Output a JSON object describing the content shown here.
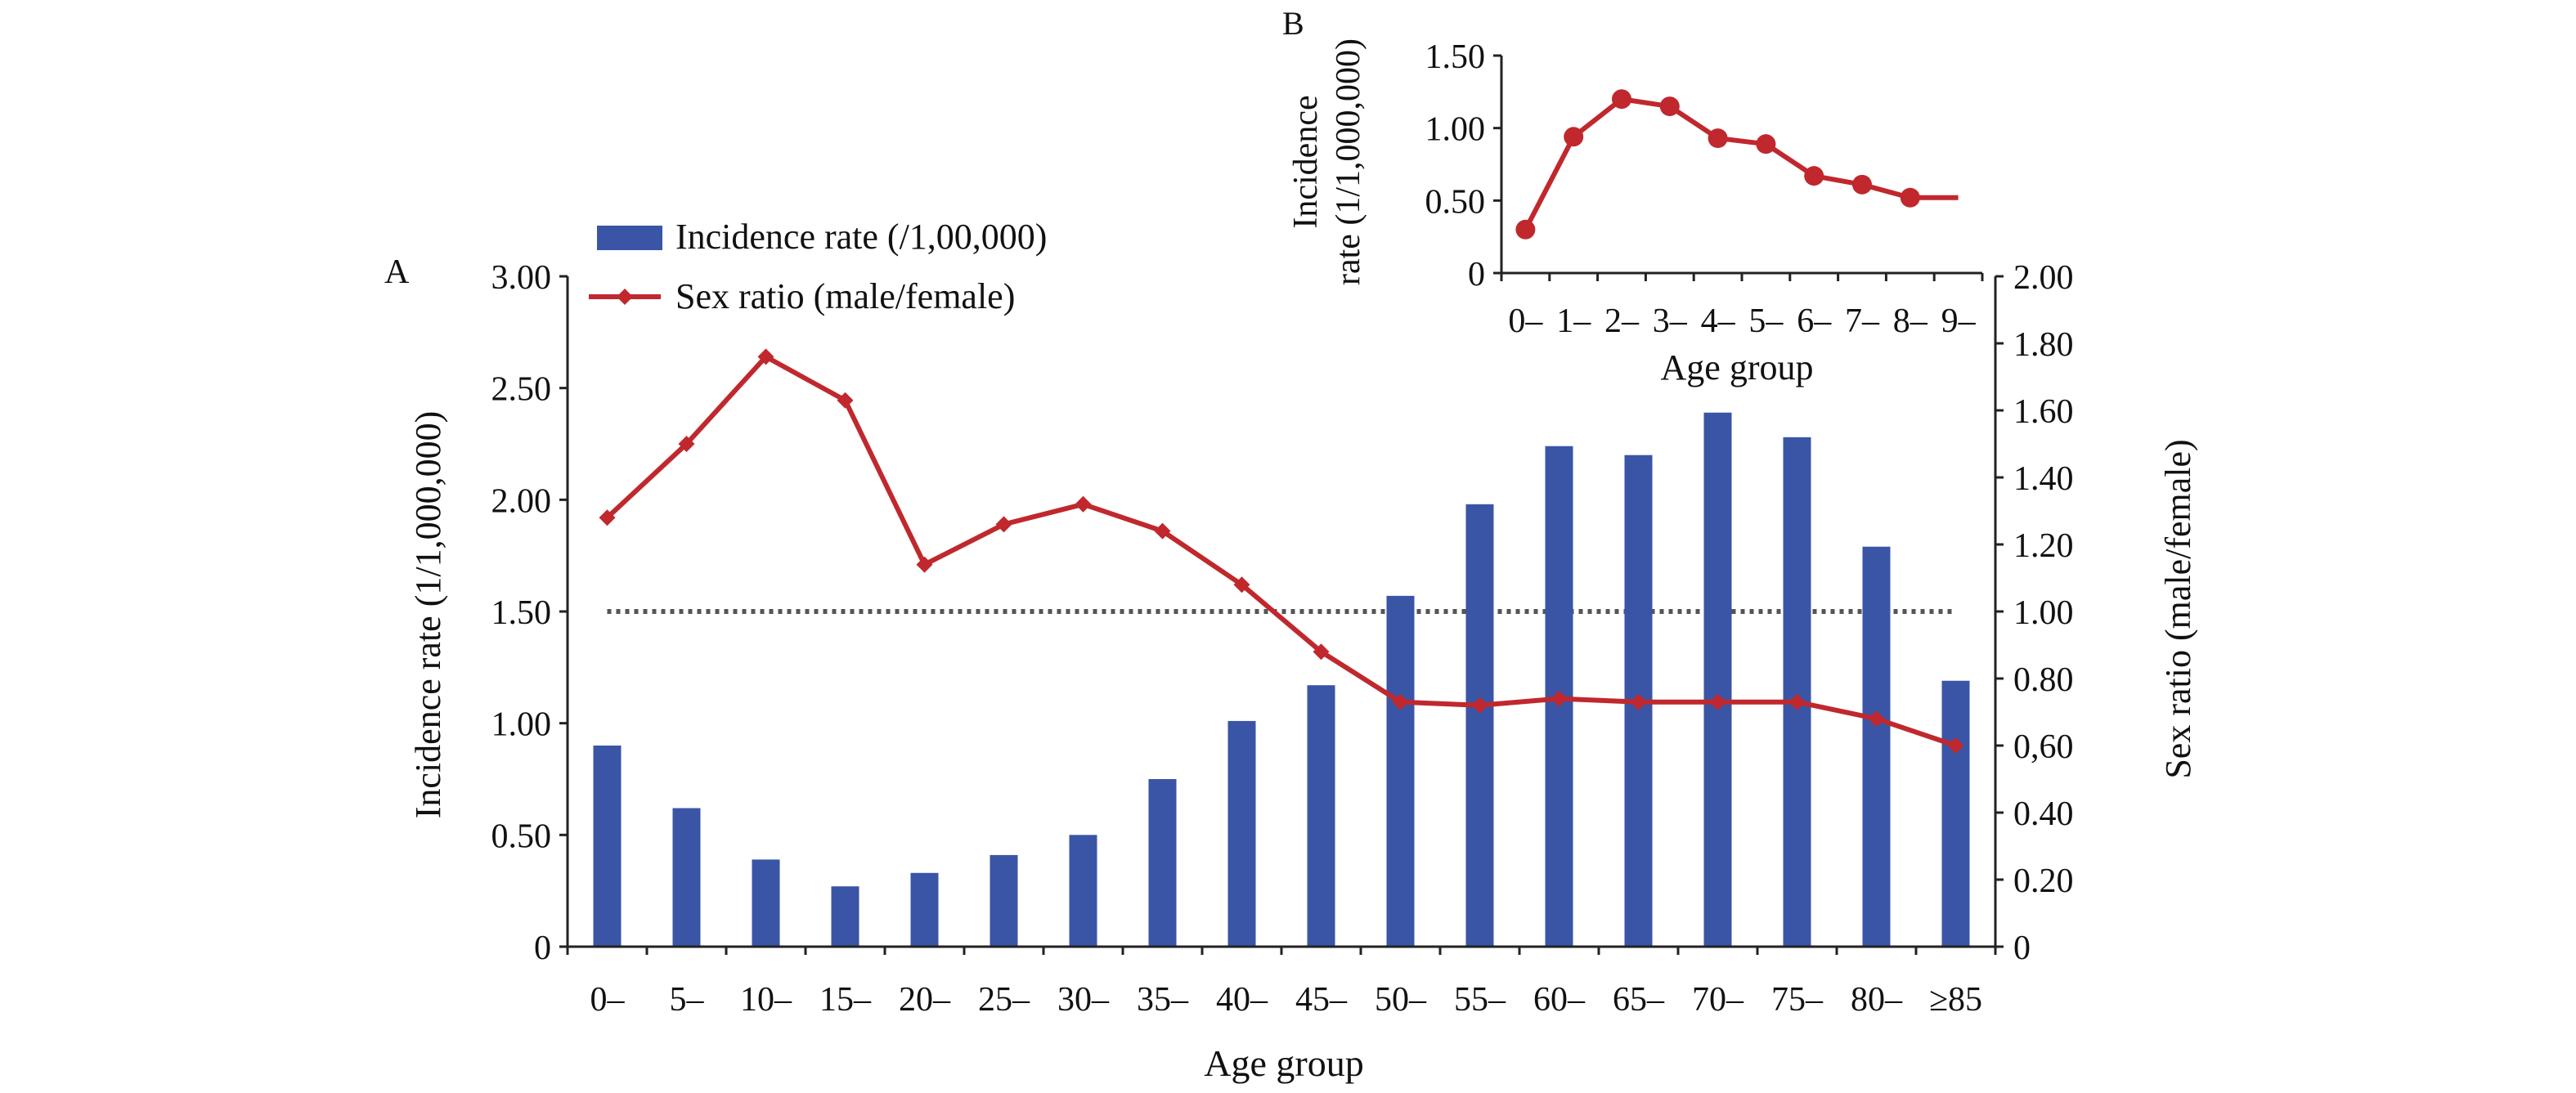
{
  "chart_data": [
    {
      "panel": "A",
      "type": "bar+line",
      "x_label": "Age group",
      "categories": [
        "0–",
        "5–",
        "10–",
        "15–",
        "20–",
        "25–",
        "30–",
        "35–",
        "40–",
        "45–",
        "50–",
        "55–",
        "60–",
        "65–",
        "70–",
        "75–",
        "80–",
        "≥85"
      ],
      "y_left": {
        "label": "Incidence rate (1/1,000,000)",
        "ticks": [
          "0",
          "0.50",
          "1.00",
          "1.50",
          "2.00",
          "2.50",
          "3.00"
        ],
        "ylim": [
          0,
          3.0
        ]
      },
      "y_right": {
        "label": "Sex ratio (male/female)",
        "ticks": [
          "0",
          "0.20",
          "0.40",
          "0,60",
          "0.80",
          "1.00",
          "1.20",
          "1.40",
          "1.60",
          "1.80",
          "2.00"
        ],
        "ylim": [
          0,
          2.0
        ]
      },
      "series": [
        {
          "name": "Incidence rate (/1,00,000)",
          "kind": "bar",
          "axis": "left",
          "color": "#3A55A6",
          "values": [
            0.9,
            0.62,
            0.39,
            0.27,
            0.33,
            0.41,
            0.5,
            0.75,
            1.01,
            1.17,
            1.57,
            1.98,
            2.24,
            2.2,
            2.39,
            2.28,
            1.79,
            1.19
          ]
        },
        {
          "name": "Sex ratio (male/female)",
          "kind": "line",
          "axis": "right",
          "color": "#C0282D",
          "values": [
            1.28,
            1.5,
            1.76,
            1.63,
            1.14,
            1.26,
            1.32,
            1.24,
            1.08,
            0.88,
            0.73,
            0.72,
            0.74,
            0.73,
            0.73,
            0.73,
            0.68,
            0.6
          ]
        }
      ],
      "reference_line": {
        "axis": "right",
        "value": 1.0,
        "style": "dotted"
      },
      "legend_position": "top-left"
    },
    {
      "panel": "B",
      "type": "line",
      "x_label": "Age group",
      "categories": [
        "0–",
        "1–",
        "2–",
        "3–",
        "4–",
        "5–",
        "6–",
        "7–",
        "8–",
        "9–"
      ],
      "y_label_lines": [
        "Incidence",
        "rate (1/1,000,000)"
      ],
      "y_ticks": [
        "0",
        "0.50",
        "1.00",
        "1.50"
      ],
      "ylim": [
        0,
        1.5
      ],
      "series": [
        {
          "kind": "line",
          "color": "#C0282D",
          "values": [
            0.3,
            0.94,
            1.2,
            1.15,
            0.93,
            0.89,
            0.67,
            0.61,
            0.52,
            0.52
          ]
        }
      ]
    }
  ]
}
